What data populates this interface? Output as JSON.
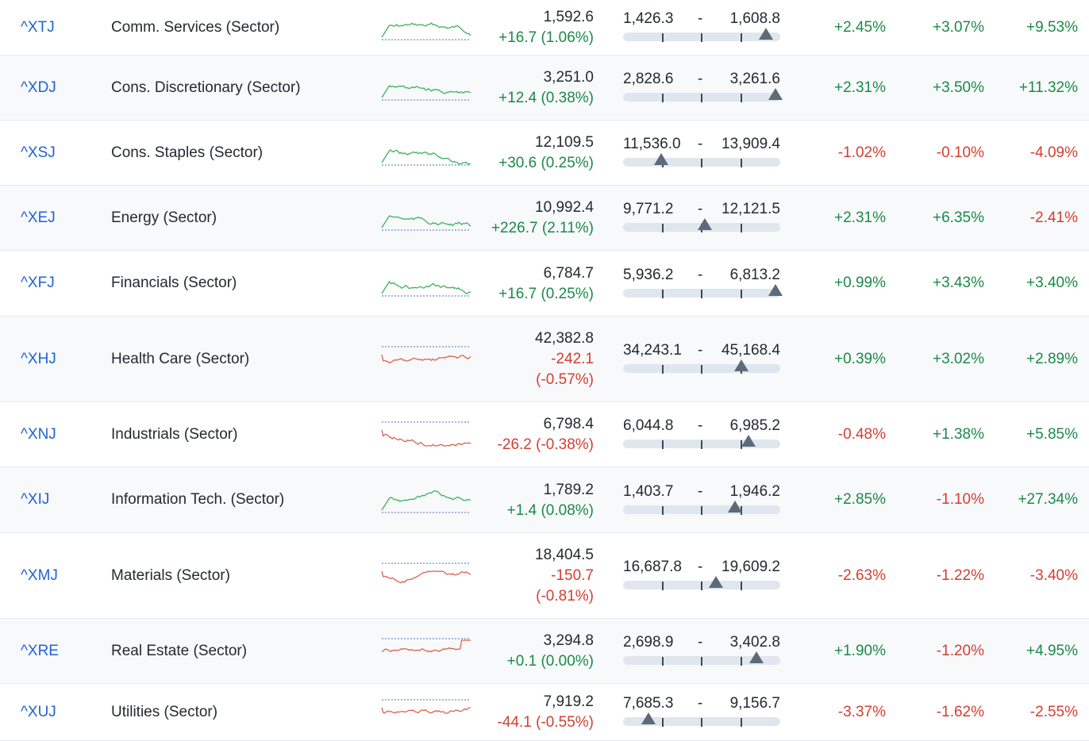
{
  "colors": {
    "up": "#1b8a48",
    "down": "#d23f31",
    "link": "#1f63d6",
    "marker": "#5c6b7a",
    "up_spark": "#3cb35d",
    "down_spark": "#d9634e"
  },
  "rows": [
    {
      "symbol": "^XTJ",
      "name": "Comm. Services (Sector)",
      "last": "1,592.6",
      "change": "+16.7 (1.06%)",
      "change_dir": "up",
      "range_low": "1,426.3",
      "range_high": "1,608.8",
      "range_position": 0.91,
      "p1": "+2.45%",
      "p2": "+3.07%",
      "p3": "+9.53%",
      "spark": "up"
    },
    {
      "symbol": "^XDJ",
      "name": "Cons. Discretionary (Sector)",
      "last": "3,251.0",
      "change": "+12.4 (0.38%)",
      "change_dir": "up",
      "range_low": "2,828.6",
      "range_high": "3,261.6",
      "range_position": 0.97,
      "p1": "+2.31%",
      "p2": "+3.50%",
      "p3": "+11.32%",
      "spark": "up"
    },
    {
      "symbol": "^XSJ",
      "name": "Cons. Staples (Sector)",
      "last": "12,109.5",
      "change": "+30.6 (0.25%)",
      "change_dir": "up",
      "range_low": "11,536.0",
      "range_high": "13,909.4",
      "range_position": 0.24,
      "p1": "-1.02%",
      "p2": "-0.10%",
      "p3": "-4.09%",
      "spark": "up"
    },
    {
      "symbol": "^XEJ",
      "name": "Energy (Sector)",
      "last": "10,992.4",
      "change": "+226.7 (2.11%)",
      "change_dir": "up",
      "range_low": "9,771.2",
      "range_high": "12,121.5",
      "range_position": 0.52,
      "p1": "+2.31%",
      "p2": "+6.35%",
      "p3": "-2.41%",
      "spark": "up"
    },
    {
      "symbol": "^XFJ",
      "name": "Financials (Sector)",
      "last": "6,784.7",
      "change": "+16.7 (0.25%)",
      "change_dir": "up",
      "range_low": "5,936.2",
      "range_high": "6,813.2",
      "range_position": 0.97,
      "p1": "+0.99%",
      "p2": "+3.43%",
      "p3": "+3.40%",
      "spark": "up"
    },
    {
      "symbol": "^XHJ",
      "name": "Health Care (Sector)",
      "last": "42,382.8",
      "change": "-242.1 (-0.57%)",
      "change_dir": "down",
      "range_low": "34,243.1",
      "range_high": "45,168.4",
      "range_position": 0.75,
      "p1": "+0.39%",
      "p2": "+3.02%",
      "p3": "+2.89%",
      "spark": "down"
    },
    {
      "symbol": "^XNJ",
      "name": "Industrials (Sector)",
      "last": "6,798.4",
      "change": "-26.2 (-0.38%)",
      "change_dir": "down",
      "range_low": "6,044.8",
      "range_high": "6,985.2",
      "range_position": 0.8,
      "p1": "-0.48%",
      "p2": "+1.38%",
      "p3": "+5.85%",
      "spark": "down"
    },
    {
      "symbol": "^XIJ",
      "name": "Information Tech. (Sector)",
      "last": "1,789.2",
      "change": "+1.4 (0.08%)",
      "change_dir": "up",
      "range_low": "1,403.7",
      "range_high": "1,946.2",
      "range_position": 0.71,
      "p1": "+2.85%",
      "p2": "-1.10%",
      "p3": "+27.34%",
      "spark": "up"
    },
    {
      "symbol": "^XMJ",
      "name": "Materials (Sector)",
      "last": "18,404.5",
      "change": "-150.7 (-0.81%)",
      "change_dir": "down",
      "range_low": "16,687.8",
      "range_high": "19,609.2",
      "range_position": 0.59,
      "p1": "-2.63%",
      "p2": "-1.22%",
      "p3": "-3.40%",
      "spark": "down"
    },
    {
      "symbol": "^XRE",
      "name": "Real Estate (Sector)",
      "last": "3,294.8",
      "change": "+0.1 (0.00%)",
      "change_dir": "up",
      "range_low": "2,698.9",
      "range_high": "3,402.8",
      "range_position": 0.85,
      "p1": "+1.90%",
      "p2": "-1.20%",
      "p3": "+4.95%",
      "spark": "mixed"
    },
    {
      "symbol": "^XUJ",
      "name": "Utilities (Sector)",
      "last": "7,919.2",
      "change": "-44.1 (-0.55%)",
      "change_dir": "down",
      "range_low": "7,685.3",
      "range_high": "9,156.7",
      "range_position": 0.16,
      "p1": "-3.37%",
      "p2": "-1.62%",
      "p3": "-2.55%",
      "spark": "down"
    }
  ]
}
